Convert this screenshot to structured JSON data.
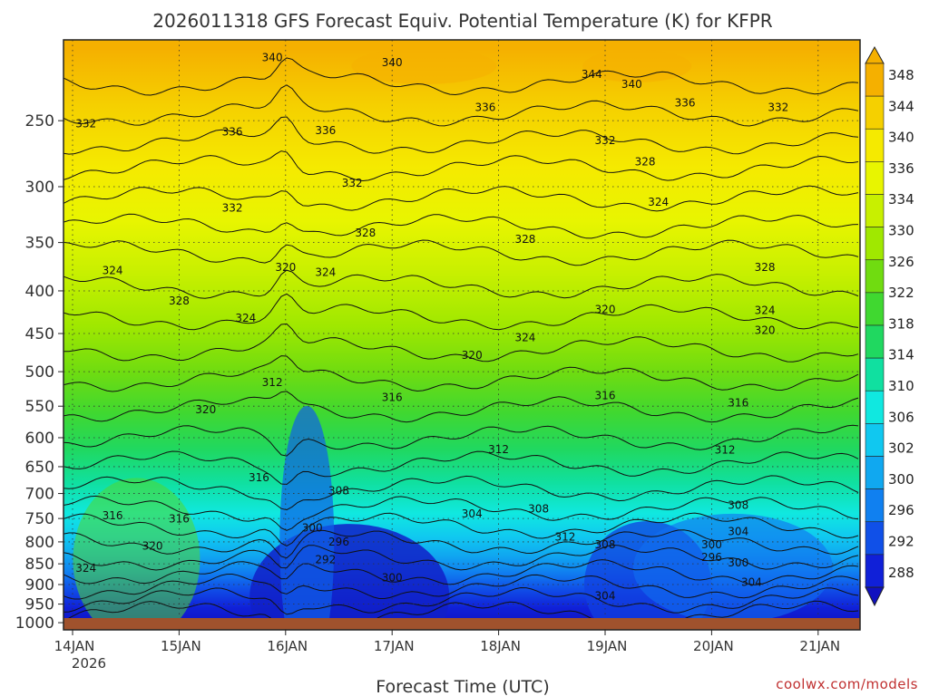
{
  "chart_data": {
    "type": "heatmap",
    "title": "2026011318 GFS Forecast Equiv. Potential Temperature (K) for KFPR",
    "xlabel": "Forecast Time (UTC)",
    "ylabel": "",
    "y_scale": "log",
    "ylim": [
      1020,
      200
    ],
    "y_ticks": [
      250,
      300,
      350,
      400,
      450,
      500,
      550,
      600,
      650,
      700,
      750,
      800,
      850,
      900,
      950,
      1000
    ],
    "x_ticks": [
      "14JAN",
      "15JAN",
      "16JAN",
      "17JAN",
      "18JAN",
      "19JAN",
      "20JAN",
      "21JAN"
    ],
    "x_year_label": "2026",
    "grid": true,
    "colorbar": {
      "levels": [
        348,
        344,
        340,
        336,
        334,
        330,
        326,
        322,
        318,
        314,
        310,
        306,
        302,
        300,
        296,
        292,
        288
      ],
      "colors": [
        "#f5b000",
        "#f5d000",
        "#f5ea00",
        "#e8f500",
        "#c8f000",
        "#a0e800",
        "#70dc10",
        "#40d830",
        "#20d860",
        "#10e0a0",
        "#10e8e0",
        "#10c8f0",
        "#10a8f0",
        "#1080f0",
        "#1050e8",
        "#1020d8",
        "#1010c0"
      ]
    },
    "contour_labels": [
      {
        "value": "340",
        "t": "15JAN 21Z",
        "p": 210
      },
      {
        "value": "340",
        "t": "17JAN 00Z",
        "p": 213
      },
      {
        "value": "344",
        "t": "18JAN 21Z",
        "p": 220
      },
      {
        "value": "340",
        "t": "19JAN 06Z",
        "p": 226
      },
      {
        "value": "336",
        "t": "19JAN 18Z",
        "p": 238
      },
      {
        "value": "336",
        "t": "17JAN 21Z",
        "p": 241
      },
      {
        "value": "332",
        "t": "20JAN 15Z",
        "p": 241
      },
      {
        "value": "332",
        "t": "14JAN 03Z",
        "p": 252
      },
      {
        "value": "336",
        "t": "15JAN 12Z",
        "p": 258
      },
      {
        "value": "336",
        "t": "16JAN 09Z",
        "p": 257
      },
      {
        "value": "332",
        "t": "19JAN 00Z",
        "p": 264
      },
      {
        "value": "328",
        "t": "19JAN 09Z",
        "p": 280
      },
      {
        "value": "332",
        "t": "16JAN 15Z",
        "p": 297
      },
      {
        "value": "324",
        "t": "19JAN 12Z",
        "p": 313
      },
      {
        "value": "332",
        "t": "15JAN 12Z",
        "p": 318
      },
      {
        "value": "328",
        "t": "16JAN 18Z",
        "p": 341
      },
      {
        "value": "328",
        "t": "18JAN 06Z",
        "p": 347
      },
      {
        "value": "320",
        "t": "16JAN 00Z",
        "p": 375
      },
      {
        "value": "324",
        "t": "14JAN 09Z",
        "p": 378
      },
      {
        "value": "324",
        "t": "16JAN 09Z",
        "p": 380
      },
      {
        "value": "328",
        "t": "20JAN 12Z",
        "p": 375
      },
      {
        "value": "328",
        "t": "14JAN 24Z",
        "p": 411
      },
      {
        "value": "324",
        "t": "20JAN 12Z",
        "p": 422
      },
      {
        "value": "320",
        "t": "19JAN 00Z",
        "p": 421
      },
      {
        "value": "324",
        "t": "15JAN 15Z",
        "p": 431
      },
      {
        "value": "320",
        "t": "20JAN 12Z",
        "p": 446
      },
      {
        "value": "324",
        "t": "18JAN 06Z",
        "p": 455
      },
      {
        "value": "320",
        "t": "17JAN 18Z",
        "p": 478
      },
      {
        "value": "312",
        "t": "15JAN 21Z",
        "p": 515
      },
      {
        "value": "316",
        "t": "17JAN 00Z",
        "p": 537
      },
      {
        "value": "316",
        "t": "19JAN 00Z",
        "p": 534
      },
      {
        "value": "316",
        "t": "20JAN 06Z",
        "p": 545
      },
      {
        "value": "320",
        "t": "15JAN 06Z",
        "p": 555
      },
      {
        "value": "312",
        "t": "18JAN 00Z",
        "p": 620
      },
      {
        "value": "312",
        "t": "20JAN 03Z",
        "p": 621
      },
      {
        "value": "316",
        "t": "15JAN 18Z",
        "p": 670
      },
      {
        "value": "308",
        "t": "16JAN 12Z",
        "p": 695
      },
      {
        "value": "308",
        "t": "20JAN 06Z",
        "p": 723
      },
      {
        "value": "308",
        "t": "18JAN 09Z",
        "p": 730
      },
      {
        "value": "304",
        "t": "17JAN 18Z",
        "p": 740
      },
      {
        "value": "316",
        "t": "14JAN 09Z",
        "p": 744
      },
      {
        "value": "316",
        "t": "15JAN 00Z",
        "p": 751
      },
      {
        "value": "300",
        "t": "16JAN 06Z",
        "p": 770
      },
      {
        "value": "304",
        "t": "20JAN 06Z",
        "p": 777
      },
      {
        "value": "296",
        "t": "16JAN 12Z",
        "p": 800
      },
      {
        "value": "312",
        "t": "18JAN 15Z",
        "p": 789
      },
      {
        "value": "308",
        "t": "19JAN 00Z",
        "p": 806
      },
      {
        "value": "300",
        "t": "20JAN 00Z",
        "p": 806
      },
      {
        "value": "320",
        "t": "14JAN 18Z",
        "p": 809
      },
      {
        "value": "292",
        "t": "16JAN 09Z",
        "p": 840
      },
      {
        "value": "296",
        "t": "20JAN 00Z",
        "p": 835
      },
      {
        "value": "300",
        "t": "20JAN 06Z",
        "p": 848
      },
      {
        "value": "324",
        "t": "14JAN 03Z",
        "p": 860
      },
      {
        "value": "300",
        "t": "16JAN 24Z",
        "p": 883
      },
      {
        "value": "304",
        "t": "20JAN 09Z",
        "p": 894
      },
      {
        "value": "304",
        "t": "18JAN 24Z",
        "p": 929
      }
    ]
  },
  "credit": "coolwx.com/models"
}
